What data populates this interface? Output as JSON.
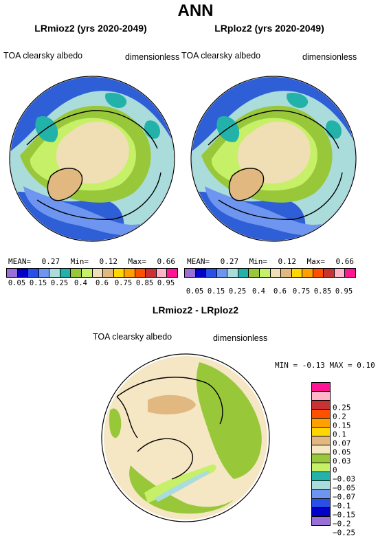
{
  "title": "ANN",
  "panels": [
    {
      "title": "LRmioz2 (yrs 2020-2049)",
      "field": "TOA clearsky albedo",
      "units": "dimensionless",
      "mean_label": "MEAN=",
      "mean": "0.27",
      "min_label": "Min=",
      "min": "0.12",
      "max_label": "Max=",
      "max": "0.66"
    },
    {
      "title": "LRploz2 (yrs 2020-2049)",
      "field": "TOA clearsky albedo",
      "units": "dimensionless",
      "mean_label": "MEAN=",
      "mean": "0.27",
      "min_label": "Min=",
      "min": "0.12",
      "max_label": "Max=",
      "max": "0.66"
    }
  ],
  "abs_colorbar": {
    "colors": [
      "#9b6fd8",
      "#0000c8",
      "#2850e6",
      "#6e96f0",
      "#aadcdc",
      "#22b2aa",
      "#98c83a",
      "#c6f068",
      "#f0deb4",
      "#e0b880",
      "#ffd700",
      "#ffa000",
      "#ff5000",
      "#c83232",
      "#ffb4c8",
      "#ff1493"
    ],
    "labels": [
      "0.05",
      "0.15",
      "0.25",
      "0.4",
      "0.6",
      "0.75",
      "0.85",
      "0.95"
    ]
  },
  "diff": {
    "title": "LRmioz2 - LRploz2",
    "field": "TOA clearsky albedo",
    "units": "dimensionless",
    "min_label": "MIN =",
    "min": "-0.13",
    "max_label": "MAX =",
    "max": "0.10",
    "colors": [
      "#ff1493",
      "#ffb4c8",
      "#c83232",
      "#ff5000",
      "#ffa000",
      "#ffd700",
      "#e0b880",
      "#f5e6c4",
      "#98c83a",
      "#c6f068",
      "#22b2aa",
      "#aadcdc",
      "#6e96f0",
      "#2850e6",
      "#0000c8",
      "#9b6fd8"
    ],
    "labels": [
      "0.25",
      "0.2",
      "0.15",
      "0.1",
      "0.07",
      "0.05",
      "0.03",
      "0",
      "−0.03",
      "−0.05",
      "−0.07",
      "−0.1",
      "−0.15",
      "−0.2",
      "−0.25"
    ]
  }
}
